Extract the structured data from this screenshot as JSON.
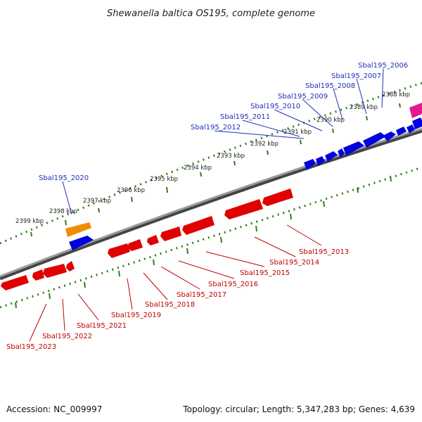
{
  "title": "Shewanella baltica OS195, complete genome",
  "footer": {
    "accession": "Accession: NC_009997",
    "summary": "Topology: circular; Length: 5,347,283 bp; Genes: 4,639"
  },
  "colors": {
    "backbone": "#808080",
    "tick": "#2f7d19",
    "forward_gene": "#0000e0",
    "reverse_gene": "#e00000",
    "label_forward": "#1f2fb8",
    "label_reverse": "#c00000",
    "orange_feature": "#f28c00",
    "pink_feature": "#e0198c"
  },
  "kbp_labels": [
    "2388 kbp",
    "2389 kbp",
    "2390 kbp",
    "2391 kbp",
    "2392 kbp",
    "2393 kbp",
    "2394 kbp",
    "2395 kbp",
    "2396 kbp",
    "2397 kbp",
    "2398 kbp",
    "2399 kbp"
  ],
  "genes_top": [
    "Sbal195_2006",
    "Sbal195_2007",
    "Sbal195_2008",
    "Sbal195_2009",
    "Sbal195_2010",
    "Sbal195_2011",
    "Sbal195_2012",
    "Sbal195_2020"
  ],
  "genes_bottom": [
    "Sbal195_2013",
    "Sbal195_2014",
    "Sbal195_2015",
    "Sbal195_2016",
    "Sbal195_2017",
    "Sbal195_2018",
    "Sbal195_2019",
    "Sbal195_2021",
    "Sbal195_2022",
    "Sbal195_2023"
  ]
}
